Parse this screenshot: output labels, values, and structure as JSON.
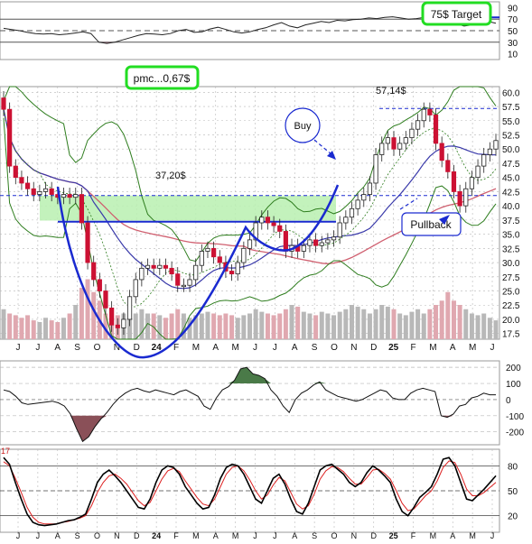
{
  "chart_data": [
    {
      "type": "line",
      "panel": "indicator-top",
      "y_ticks": [
        90,
        70,
        50,
        30,
        10
      ],
      "ylim": [
        0,
        100
      ],
      "reference_lines": [
        70,
        50,
        30
      ],
      "series": [
        {
          "values": [
            54,
            52,
            50,
            47,
            45,
            44,
            45,
            43,
            44,
            46,
            48,
            45,
            30,
            28,
            30,
            34,
            38,
            42,
            45,
            44,
            43,
            45,
            50,
            52,
            47,
            48,
            53,
            56,
            52,
            48,
            46,
            48,
            52,
            55,
            60,
            64,
            58,
            55,
            60,
            63,
            66,
            64,
            68,
            67,
            69,
            70,
            72,
            71,
            73,
            74,
            72,
            70,
            71,
            73,
            75,
            74,
            68,
            62,
            58,
            60,
            64,
            66,
            63
          ]
        }
      ]
    },
    {
      "type": "candlestick",
      "panel": "price",
      "x_ticks": [
        "J",
        "J",
        "A",
        "S",
        "O",
        "N",
        "D",
        "24",
        "F",
        "M",
        "A",
        "M",
        "J",
        "J",
        "A",
        "S",
        "O",
        "N",
        "D",
        "25",
        "F",
        "M",
        "A",
        "M",
        "J"
      ],
      "y_ticks": [
        60.0,
        57.5,
        55.0,
        52.5,
        50.0,
        47.5,
        45.0,
        42.5,
        40.0,
        37.5,
        35.0,
        32.5,
        30.0,
        27.5,
        25.0,
        22.5,
        20.0,
        17.5
      ],
      "ylim": [
        16.5,
        61
      ],
      "close": [
        57,
        47,
        45,
        44,
        43,
        42,
        42.5,
        43,
        42,
        41.5,
        42,
        41.5,
        42,
        37,
        30,
        27,
        25,
        22,
        19,
        18.5,
        20,
        24,
        27,
        29,
        29.5,
        29,
        29.5,
        29,
        28,
        26,
        26,
        27,
        29.5,
        32,
        32.5,
        31,
        30,
        28.5,
        28,
        30,
        32.5,
        34,
        37,
        38,
        37,
        36.5,
        35.5,
        32,
        33,
        32,
        33,
        34,
        33,
        33.5,
        34,
        34.5,
        37,
        38,
        39.5,
        41,
        42,
        44,
        49,
        51,
        52,
        50,
        51,
        52,
        53.5,
        55,
        57,
        56,
        51,
        48,
        46,
        42.5,
        40,
        43,
        45,
        47,
        49,
        50,
        51.5
      ],
      "reference_lines": [
        37.2,
        41.8,
        57.14
      ],
      "volume": [
        35,
        30,
        28,
        25,
        28,
        22,
        20,
        25,
        22,
        20,
        25,
        30,
        40,
        60,
        70,
        55,
        45,
        30,
        25,
        28,
        30,
        25,
        30,
        35,
        30,
        30,
        28,
        25,
        30,
        35,
        30,
        25,
        28,
        30,
        32,
        30,
        28,
        30,
        28,
        25,
        28,
        30,
        35,
        32,
        30,
        28,
        30,
        35,
        40,
        38,
        32,
        30,
        28,
        32,
        30,
        28,
        32,
        35,
        40,
        38,
        35,
        30,
        35,
        40,
        38,
        35,
        30,
        28,
        32,
        35,
        30,
        35,
        40,
        45,
        55,
        45,
        40,
        35,
        30,
        28,
        30,
        25,
        22
      ]
    },
    {
      "type": "area",
      "panel": "macd",
      "y_ticks": [
        200,
        100,
        0,
        -100,
        -200
      ],
      "ylim": [
        -280,
        240
      ],
      "values": [
        60,
        50,
        20,
        -20,
        -30,
        -25,
        -20,
        -15,
        -10,
        -20,
        -40,
        -90,
        -180,
        -260,
        -230,
        -170,
        -120,
        -80,
        -30,
        10,
        40,
        60,
        70,
        55,
        45,
        60,
        50,
        40,
        30,
        50,
        60,
        40,
        20,
        -40,
        -60,
        10,
        60,
        80,
        120,
        190,
        200,
        160,
        150,
        130,
        60,
        20,
        -40,
        -80,
        0,
        40,
        60,
        90,
        110,
        60,
        40,
        20,
        10,
        0,
        -10,
        0,
        20,
        40,
        60,
        50,
        10,
        0,
        0,
        40,
        60,
        70,
        60,
        50,
        -100,
        -110,
        -90,
        -40,
        -30,
        10,
        20,
        40,
        30,
        30
      ]
    },
    {
      "type": "line",
      "panel": "stochastic",
      "y_ticks": [
        80,
        50,
        20
      ],
      "ylim": [
        0,
        100
      ],
      "reference_lines": [
        80,
        50,
        20
      ],
      "series": [
        {
          "values": [
            90,
            82,
            60,
            40,
            22,
            12,
            9,
            8,
            9,
            10,
            12,
            14,
            15,
            18,
            22,
            40,
            60,
            70,
            75,
            68,
            60,
            50,
            40,
            30,
            28,
            40,
            60,
            75,
            80,
            78,
            70,
            55,
            45,
            35,
            28,
            30,
            45,
            65,
            78,
            82,
            80,
            70,
            55,
            40,
            35,
            50,
            65,
            70,
            58,
            40,
            25,
            22,
            35,
            55,
            75,
            80,
            82,
            76,
            70,
            60,
            55,
            60,
            72,
            80,
            75,
            68,
            60,
            40,
            25,
            20,
            30,
            42,
            48,
            55,
            70,
            88,
            90,
            80,
            60,
            40,
            38,
            45,
            52,
            60,
            68
          ]
        },
        {
          "values": [
            85,
            80,
            65,
            48,
            30,
            18,
            12,
            10,
            10,
            10,
            12,
            13,
            15,
            17,
            20,
            32,
            48,
            60,
            68,
            70,
            65,
            58,
            48,
            38,
            32,
            36,
            50,
            64,
            74,
            77,
            73,
            62,
            52,
            42,
            34,
            32,
            40,
            55,
            70,
            78,
            80,
            74,
            63,
            50,
            40,
            45,
            57,
            66,
            62,
            48,
            34,
            28,
            32,
            46,
            64,
            74,
            79,
            78,
            73,
            65,
            58,
            58,
            66,
            75,
            76,
            71,
            64,
            50,
            35,
            26,
            28,
            36,
            44,
            50,
            62,
            78,
            86,
            84,
            70,
            52,
            44,
            44,
            48,
            54,
            60
          ]
        }
      ]
    }
  ],
  "annotations": {
    "target": "75$ Target",
    "pmc": "pmc...0,67$",
    "price_high": "57,14$",
    "buy": "Buy",
    "cup_base": "37,20$",
    "pullback": "Pullback",
    "stoch_edge": "17"
  },
  "colors": {
    "candle_up": "#ffffff",
    "candle_down": "#cc1133",
    "bollinger": "#2e7d1e",
    "ma_fast": "#3a3aaa",
    "ma_slow": "#d06070",
    "highlight_zone": "#b8f0b0",
    "callout_green": "#22dd22",
    "annotation_blue": "#1a2ad0",
    "macd_positive": "#4a7a48",
    "macd_negative": "#8a5058",
    "stoch_k": "#000000",
    "stoch_d": "#dd2020",
    "grid": "#b8b8b8"
  }
}
